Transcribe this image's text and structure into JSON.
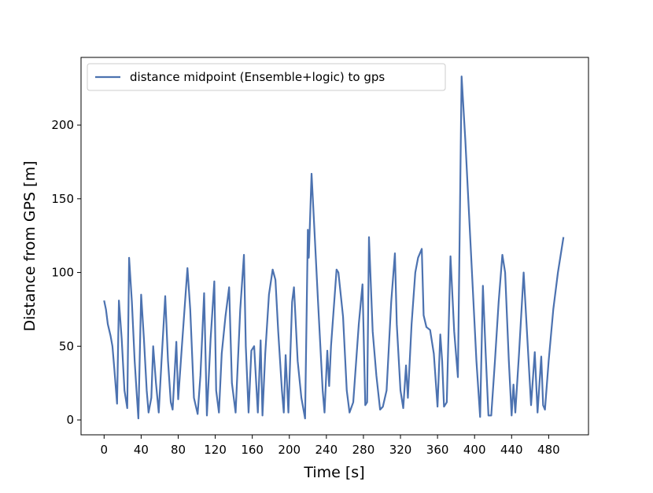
{
  "chart_data": {
    "type": "line",
    "xlabel": "Time [s]",
    "ylabel": "Distance from GPS [m]",
    "x": [
      0,
      2,
      4,
      7,
      9,
      11,
      14,
      16,
      19,
      22,
      25,
      27,
      30,
      33,
      35,
      37,
      40,
      43,
      46,
      48,
      51,
      53,
      56,
      59,
      62,
      66,
      69,
      72,
      74,
      78,
      80,
      84,
      90,
      93,
      97,
      101,
      104,
      108,
      111,
      115,
      119,
      121,
      124,
      127,
      131,
      135,
      138,
      142,
      147,
      151,
      153,
      156,
      159,
      162,
      166,
      169,
      171,
      174,
      178,
      182,
      185,
      188,
      192,
      194,
      196,
      199,
      203,
      205,
      209,
      213,
      217,
      220,
      221,
      224,
      227,
      231,
      236,
      238,
      241,
      243,
      245,
      251,
      253,
      258,
      262,
      265,
      269,
      275,
      279,
      282,
      284,
      286,
      290,
      294,
      298,
      301,
      305,
      310,
      314,
      316,
      320,
      323,
      326,
      328,
      332,
      336,
      339,
      343,
      345,
      348,
      352,
      356,
      360,
      363,
      365,
      367,
      370,
      374,
      378,
      382,
      386,
      390,
      394,
      398,
      402,
      406,
      409,
      412,
      415,
      418,
      422,
      426,
      430,
      433,
      437,
      440,
      442,
      444,
      448,
      453,
      457,
      461,
      465,
      468,
      472,
      474,
      476,
      480,
      485,
      490,
      496
    ],
    "series": [
      {
        "name": "distance midpoint (Ensemble+logic) to gps",
        "color": "#4c72b0",
        "values": [
          81,
          75,
          65,
          57,
          50,
          35,
          11,
          81,
          55,
          20,
          8,
          110,
          80,
          40,
          20,
          1,
          85,
          55,
          20,
          5,
          15,
          50,
          25,
          5,
          40,
          84,
          40,
          12,
          7,
          53,
          14,
          50,
          103,
          75,
          15,
          4,
          30,
          86,
          3,
          55,
          94,
          20,
          5,
          45,
          70,
          90,
          25,
          5,
          75,
          112,
          50,
          5,
          47,
          50,
          5,
          54,
          3,
          45,
          85,
          102,
          95,
          60,
          20,
          5,
          44,
          5,
          80,
          90,
          40,
          15,
          1,
          129,
          110,
          167,
          130,
          80,
          20,
          5,
          47,
          23,
          50,
          102,
          100,
          70,
          20,
          5,
          12,
          65,
          92,
          10,
          12,
          124,
          60,
          30,
          7,
          9,
          20,
          80,
          113,
          65,
          20,
          8,
          37,
          15,
          65,
          100,
          110,
          116,
          71,
          63,
          61,
          45,
          9,
          58,
          40,
          9,
          12,
          111,
          60,
          29,
          233,
          190,
          140,
          90,
          40,
          2,
          91,
          45,
          3,
          3,
          40,
          80,
          112,
          100,
          40,
          3,
          24,
          5,
          45,
          100,
          55,
          10,
          46,
          5,
          43,
          10,
          7,
          40,
          75,
          100,
          124
        ]
      }
    ],
    "xlim": [
      -24.9,
      523
    ],
    "ylim": [
      -10.1,
      245.9
    ],
    "xticks": [
      0,
      40,
      80,
      120,
      160,
      200,
      240,
      280,
      320,
      360,
      400,
      440,
      480
    ],
    "yticks": [
      0,
      50,
      100,
      150,
      200
    ],
    "legend": "upper left"
  }
}
